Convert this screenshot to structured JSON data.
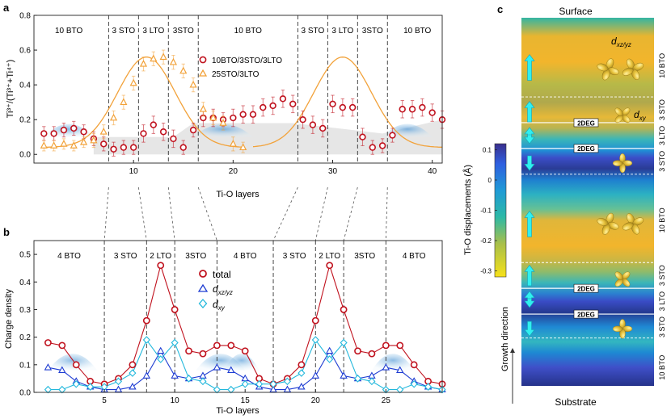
{
  "panel_labels": {
    "a": "a",
    "b": "b",
    "c": "c"
  },
  "chart_data": [
    {
      "id": "a",
      "type": "scatter",
      "xlabel": "Ti-O layers",
      "ylabel": "Ti³⁺/(Ti³⁺+Ti⁴⁺)",
      "xlim": [
        0,
        41
      ],
      "ylim": [
        -0.05,
        0.8
      ],
      "xticks": [
        10,
        20,
        30,
        40
      ],
      "yticks": [
        0.0,
        0.2,
        0.4,
        0.6,
        0.8
      ],
      "ytick_labels": [
        "0.0",
        "0.2",
        "0.4",
        "0.6",
        "0.8"
      ],
      "boundaries": [
        7.5,
        10.5,
        13.5,
        16.5,
        26.5,
        29.5,
        32.5,
        35.5
      ],
      "region_labels": [
        {
          "label": "10 BTO",
          "x": 3.5
        },
        {
          "label": "3 STO",
          "x": 9.0
        },
        {
          "label": "3 LTO",
          "x": 12.0
        },
        {
          "label": "3STO",
          "x": 15.0
        },
        {
          "label": "10 BTO",
          "x": 21.5
        },
        {
          "label": "3 STO",
          "x": 28.0
        },
        {
          "label": "3 LTO",
          "x": 31.0
        },
        {
          "label": "3STO",
          "x": 34.0
        },
        {
          "label": "10 BTO",
          "x": 38.5
        }
      ],
      "legend": [
        {
          "label": "10BTO/3STO/3LTO",
          "color": "#c0121e",
          "marker": "circle"
        },
        {
          "label": "25STO/3LTO",
          "color": "#f2a23a",
          "marker": "triangle"
        }
      ],
      "series": [
        {
          "name": "10BTO/3STO/3LTO",
          "color": "#c0121e",
          "marker": "circle",
          "x": [
            1,
            2,
            3,
            4,
            5,
            6,
            7,
            8,
            9,
            10,
            11,
            12,
            13,
            14,
            15,
            16,
            17,
            18,
            19,
            20,
            21,
            22,
            23,
            24,
            25,
            26,
            27,
            28,
            29,
            30,
            31,
            32,
            33,
            34,
            35,
            36,
            37,
            38,
            39,
            40,
            41
          ],
          "y": [
            0.12,
            0.12,
            0.14,
            0.15,
            0.13,
            0.09,
            0.06,
            0.03,
            0.04,
            0.04,
            0.12,
            0.17,
            0.13,
            0.09,
            0.04,
            0.14,
            0.21,
            0.21,
            0.2,
            0.21,
            0.23,
            0.23,
            0.27,
            0.28,
            0.32,
            0.29,
            0.2,
            0.17,
            0.15,
            0.29,
            0.27,
            0.27,
            0.1,
            0.04,
            0.05,
            0.11,
            0.26,
            0.26,
            0.27,
            0.24,
            0.2
          ],
          "err": [
            0.04,
            0.04,
            0.04,
            0.04,
            0.04,
            0.04,
            0.04,
            0.04,
            0.04,
            0.04,
            0.05,
            0.05,
            0.05,
            0.05,
            0.04,
            0.04,
            0.05,
            0.05,
            0.04,
            0.05,
            0.05,
            0.05,
            0.05,
            0.05,
            0.05,
            0.05,
            0.05,
            0.05,
            0.05,
            0.05,
            0.05,
            0.05,
            0.05,
            0.04,
            0.04,
            0.04,
            0.05,
            0.05,
            0.05,
            0.05,
            0.05
          ]
        },
        {
          "name": "25STO/3LTO",
          "color": "#f2a23a",
          "marker": "triangle",
          "x": [
            1,
            2,
            3,
            4,
            5,
            6,
            7,
            8,
            9,
            10,
            11,
            12,
            13,
            14,
            15,
            16,
            17,
            18,
            19,
            20,
            21
          ],
          "y": [
            0.05,
            0.05,
            0.06,
            0.05,
            0.07,
            0.08,
            0.13,
            0.21,
            0.3,
            0.41,
            0.52,
            0.55,
            0.56,
            0.53,
            0.48,
            0.4,
            0.26,
            0.21,
            0.18,
            0.06,
            0.04
          ],
          "err": [
            0.03,
            0.03,
            0.03,
            0.03,
            0.03,
            0.04,
            0.04,
            0.04,
            0.04,
            0.04,
            0.04,
            0.04,
            0.04,
            0.04,
            0.04,
            0.04,
            0.04,
            0.04,
            0.04,
            0.04,
            0.03
          ]
        }
      ],
      "fit_curves": [
        {
          "type": "gaussian",
          "x_range": [
            1,
            21
          ],
          "center": 11.3,
          "amplitude": 0.52,
          "sigma": 2.9,
          "baseline": 0.04
        },
        {
          "type": "gaussian",
          "x_range": [
            22,
            41
          ],
          "center": 31.0,
          "amplitude": 0.52,
          "sigma": 2.9,
          "baseline": 0.04
        }
      ]
    },
    {
      "id": "b",
      "type": "line",
      "xlabel": "Ti-O layers",
      "ylabel": "Charge density",
      "xlim": [
        0,
        29
      ],
      "ylim": [
        0,
        0.55
      ],
      "xticks": [
        5,
        10,
        15,
        20,
        25
      ],
      "yticks": [
        0.0,
        0.1,
        0.2,
        0.3,
        0.4,
        0.5
      ],
      "ytick_labels": [
        "0.0",
        "0.1",
        "0.2",
        "0.3",
        "0.4",
        "0.5"
      ],
      "boundaries": [
        5,
        8,
        10,
        13,
        17,
        20,
        22,
        25
      ],
      "region_labels": [
        {
          "label": "4 BTO",
          "x": 2.5
        },
        {
          "label": "3 STO",
          "x": 6.5
        },
        {
          "label": "2 LTO",
          "x": 9.0
        },
        {
          "label": "3STO",
          "x": 11.5
        },
        {
          "label": "4 BTO",
          "x": 15.0
        },
        {
          "label": "3 STO",
          "x": 18.5
        },
        {
          "label": "2 LTO",
          "x": 21.0
        },
        {
          "label": "3STO",
          "x": 23.5
        },
        {
          "label": "4 BTO",
          "x": 27.0
        }
      ],
      "legend": [
        {
          "label": "total",
          "color": "#c0121e",
          "marker": "circle"
        },
        {
          "label": "xz/yz",
          "color": "#1e3cd2",
          "marker": "triangle"
        },
        {
          "label": "xy",
          "color": "#22b8dc",
          "marker": "diamond"
        }
      ],
      "x": [
        1,
        2,
        3,
        4,
        5,
        6,
        7,
        8,
        9,
        10,
        11,
        12,
        13,
        14,
        15,
        16,
        17,
        18,
        19,
        20,
        21,
        22,
        23,
        24,
        25,
        26,
        27,
        28,
        29
      ],
      "series": [
        {
          "name": "total",
          "color": "#c0121e",
          "marker": "circle",
          "values": [
            0.18,
            0.17,
            0.1,
            0.04,
            0.03,
            0.05,
            0.1,
            0.26,
            0.46,
            0.3,
            0.15,
            0.14,
            0.17,
            0.17,
            0.15,
            0.05,
            0.03,
            0.05,
            0.1,
            0.26,
            0.46,
            0.3,
            0.15,
            0.14,
            0.17,
            0.17,
            0.1,
            0.04,
            0.03
          ]
        },
        {
          "name": "xz/yz",
          "color": "#1e3cd2",
          "marker": "triangle",
          "values": [
            0.09,
            0.08,
            0.04,
            0.02,
            0.01,
            0.01,
            0.02,
            0.06,
            0.15,
            0.06,
            0.05,
            0.06,
            0.09,
            0.08,
            0.05,
            0.02,
            0.01,
            0.01,
            0.02,
            0.06,
            0.15,
            0.06,
            0.05,
            0.06,
            0.09,
            0.08,
            0.04,
            0.02,
            0.01
          ]
        },
        {
          "name": "xy",
          "color": "#22b8dc",
          "marker": "diamond",
          "values": [
            0.01,
            0.01,
            0.03,
            0.02,
            0.02,
            0.04,
            0.07,
            0.19,
            0.12,
            0.18,
            0.05,
            0.04,
            0.01,
            0.01,
            0.03,
            0.03,
            0.03,
            0.04,
            0.07,
            0.19,
            0.12,
            0.18,
            0.05,
            0.04,
            0.01,
            0.01,
            0.03,
            0.02,
            0.01
          ]
        }
      ]
    },
    {
      "id": "c",
      "type": "heatmap",
      "title_top": "Surface",
      "title_bottom": "Substrate",
      "colorbar_label": "Ti-O displacements (Å)",
      "colorbar_ticks": [
        "0.1",
        "0",
        "-0.1",
        "-0.2",
        "-0.3"
      ],
      "colorbar_values": [
        0.1,
        0,
        -0.1,
        -0.2,
        -0.3
      ],
      "colorbar_range": [
        -0.32,
        0.12
      ],
      "axis_label": "Growth direction",
      "layer_labels": [
        "10 BTO",
        "3 STO",
        "3 LTO",
        "3 STO",
        "10 BTO",
        "3 STO",
        "3 LTO",
        "3 STO",
        "10 BTO"
      ],
      "badges": [
        "2DEG",
        "2DEG",
        "2DEG",
        "2DEG"
      ],
      "orbital_labels": {
        "xzyz": "xz/yz",
        "xy": "xy"
      }
    }
  ]
}
